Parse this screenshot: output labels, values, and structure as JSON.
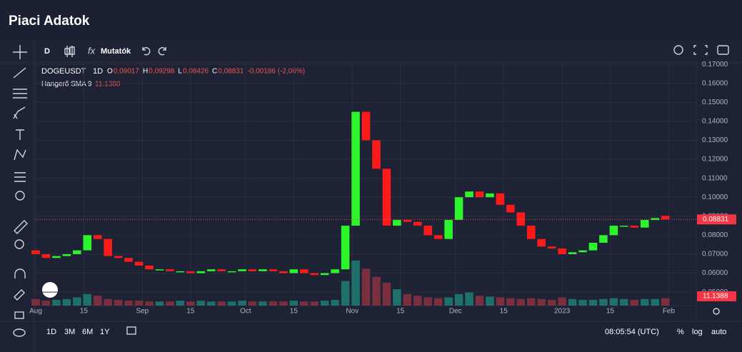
{
  "page_title": "Piaci Adatok",
  "toolbar": {
    "interval": "D",
    "indicators": "Mutatók"
  },
  "bottom_bar": {
    "ranges": [
      "1D",
      "3M",
      "6M",
      "1Y"
    ],
    "clock": "08:05:54 (UTC)",
    "percent": "%",
    "log": "log",
    "auto": "auto"
  },
  "legend": {
    "symbol": "DOGEUSDT",
    "interval": "1D",
    "ohlc": [
      {
        "key": "O",
        "value": "0,09017"
      },
      {
        "key": "H",
        "value": "0,09298"
      },
      {
        "key": "L",
        "value": "0,08426"
      },
      {
        "key": "C",
        "value": "0,08831"
      }
    ],
    "change": "-0,00186 (-2,06%)",
    "volume_label": "Hangerő SMA 9",
    "volume_value": "11.1388"
  },
  "chart_data": {
    "type": "candlestick",
    "up_color": "#2cf52c",
    "down_color": "#ff1a1a",
    "volume_up_color": "#1f6f6b",
    "volume_down_color": "#7a2f3e",
    "x": [
      0,
      3,
      6,
      9,
      12,
      15,
      18,
      21,
      24,
      27,
      30,
      33,
      36,
      39,
      42,
      45,
      48,
      51,
      54,
      57,
      60,
      63,
      66,
      69,
      72,
      75,
      78,
      81,
      84,
      87,
      90,
      93,
      96,
      99,
      102,
      105,
      108,
      111,
      114,
      117,
      120,
      123,
      126,
      129,
      132,
      135,
      138,
      141,
      144,
      147,
      150,
      153,
      156,
      159,
      162,
      165,
      168,
      171,
      174,
      177,
      180,
      183
    ],
    "open": [
      0.072,
      0.07,
      0.068,
      0.069,
      0.07,
      0.072,
      0.08,
      0.078,
      0.069,
      0.068,
      0.066,
      0.064,
      0.062,
      0.062,
      0.061,
      0.061,
      0.06,
      0.061,
      0.062,
      0.061,
      0.061,
      0.062,
      0.061,
      0.062,
      0.061,
      0.06,
      0.062,
      0.06,
      0.059,
      0.06,
      0.062,
      0.085,
      0.145,
      0.13,
      0.115,
      0.085,
      0.088,
      0.087,
      0.085,
      0.08,
      0.078,
      0.088,
      0.1,
      0.103,
      0.1,
      0.102,
      0.096,
      0.092,
      0.085,
      0.078,
      0.074,
      0.073,
      0.07,
      0.071,
      0.072,
      0.076,
      0.08,
      0.085,
      0.085,
      0.084,
      0.088,
      0.0902
    ],
    "close": [
      0.07,
      0.068,
      0.069,
      0.07,
      0.072,
      0.08,
      0.078,
      0.069,
      0.068,
      0.066,
      0.064,
      0.062,
      0.062,
      0.061,
      0.061,
      0.06,
      0.061,
      0.062,
      0.061,
      0.061,
      0.062,
      0.061,
      0.062,
      0.061,
      0.06,
      0.062,
      0.06,
      0.059,
      0.06,
      0.062,
      0.085,
      0.145,
      0.13,
      0.115,
      0.085,
      0.088,
      0.087,
      0.085,
      0.08,
      0.078,
      0.088,
      0.1,
      0.103,
      0.1,
      0.102,
      0.096,
      0.092,
      0.085,
      0.078,
      0.074,
      0.073,
      0.07,
      0.071,
      0.072,
      0.076,
      0.08,
      0.085,
      0.085,
      0.084,
      0.088,
      0.089,
      0.0883
    ],
    "volume": [
      8,
      6,
      7,
      8,
      10,
      14,
      12,
      8,
      7,
      6,
      6,
      5,
      5,
      5,
      6,
      5,
      6,
      5,
      5,
      5,
      6,
      5,
      5,
      5,
      5,
      6,
      5,
      5,
      6,
      7,
      30,
      55,
      45,
      35,
      28,
      20,
      14,
      12,
      10,
      9,
      10,
      14,
      16,
      12,
      11,
      10,
      9,
      8,
      9,
      8,
      7,
      10,
      8,
      7,
      7,
      8,
      9,
      8,
      7,
      8,
      8,
      9
    ],
    "vlim": [
      0,
      80
    ],
    "xlim": [
      0,
      192
    ],
    "xticks": [
      {
        "value": 0,
        "label": "Aug"
      },
      {
        "value": 14,
        "label": "15"
      },
      {
        "value": 31,
        "label": "Sep"
      },
      {
        "value": 45,
        "label": "15"
      },
      {
        "value": 61,
        "label": "Oct"
      },
      {
        "value": 75,
        "label": "15"
      },
      {
        "value": 92,
        "label": "Nov"
      },
      {
        "value": 106,
        "label": "15"
      },
      {
        "value": 122,
        "label": "Dec"
      },
      {
        "value": 136,
        "label": "15"
      },
      {
        "value": 153,
        "label": "2023"
      },
      {
        "value": 167,
        "label": "15"
      },
      {
        "value": 184,
        "label": "Feb"
      }
    ],
    "ylim": [
      0.0429,
      0.1708
    ],
    "yticks": [
      {
        "value": 0.05,
        "label": "0.05000"
      },
      {
        "value": 0.06,
        "label": "0.06000"
      },
      {
        "value": 0.07,
        "label": "0.07000"
      },
      {
        "value": 0.08,
        "label": "0.08000"
      },
      {
        "value": 0.09,
        "label": "0.09000"
      },
      {
        "value": 0.1,
        "label": "0.10000"
      },
      {
        "value": 0.11,
        "label": "0.11000"
      },
      {
        "value": 0.12,
        "label": "0.12000"
      },
      {
        "value": 0.13,
        "label": "0.13000"
      },
      {
        "value": 0.14,
        "label": "0.14000"
      },
      {
        "value": 0.15,
        "label": "0.15000"
      },
      {
        "value": 0.16,
        "label": "0.16000"
      },
      {
        "value": 0.17,
        "label": "0.17000"
      }
    ],
    "last_price": {
      "value": 0.08831,
      "label": "0.08831"
    },
    "grid": true
  }
}
